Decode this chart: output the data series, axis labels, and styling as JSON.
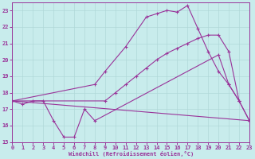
{
  "xlabel": "Windchill (Refroidissement éolien,°C)",
  "xlim": [
    0,
    23
  ],
  "ylim": [
    15,
    23.5
  ],
  "yticks": [
    15,
    16,
    17,
    18,
    19,
    20,
    21,
    22,
    23
  ],
  "xticks": [
    0,
    1,
    2,
    3,
    4,
    5,
    6,
    7,
    8,
    9,
    10,
    11,
    12,
    13,
    14,
    15,
    16,
    17,
    18,
    19,
    20,
    21,
    22,
    23
  ],
  "bg_color": "#c8ecec",
  "grid_color": "#b0d8d8",
  "line_color": "#993399",
  "line1_x": [
    0,
    1,
    2,
    3,
    4,
    5,
    6,
    7,
    8,
    20,
    21,
    22
  ],
  "line1_y": [
    17.5,
    17.3,
    17.5,
    17.5,
    16.3,
    15.3,
    15.3,
    17.0,
    16.3,
    20.3,
    18.5,
    17.5
  ],
  "line2_x": [
    0,
    23
  ],
  "line2_y": [
    17.5,
    16.3
  ],
  "line3_x": [
    0,
    8,
    9,
    11,
    13,
    14,
    15,
    16,
    17,
    18,
    19,
    20,
    21,
    22,
    23
  ],
  "line3_y": [
    17.5,
    18.5,
    19.3,
    20.8,
    22.6,
    22.8,
    23.0,
    22.9,
    23.3,
    21.9,
    20.5,
    19.3,
    18.5,
    17.5,
    16.3
  ],
  "line4_x": [
    0,
    9,
    10,
    11,
    12,
    13,
    14,
    15,
    16,
    17,
    18,
    19,
    20,
    21,
    22,
    23
  ],
  "line4_y": [
    17.5,
    17.5,
    18.0,
    18.5,
    19.0,
    19.5,
    20.0,
    20.4,
    20.7,
    21.0,
    21.3,
    21.5,
    21.5,
    20.5,
    17.5,
    16.3
  ]
}
